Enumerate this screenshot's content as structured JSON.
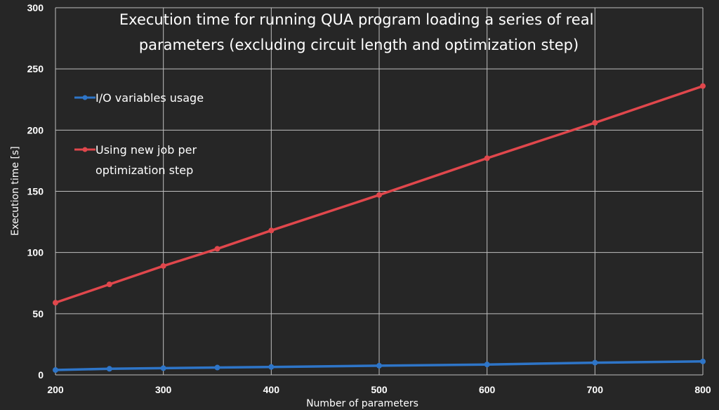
{
  "chart_data": {
    "type": "line",
    "title_lines": [
      "Execution time for running QUA program loading a series of real",
      "parameters (excluding circuit length and optimization step)"
    ],
    "xlabel": "Number of parameters",
    "ylabel": "Execution time [s]",
    "xlim": [
      200,
      800
    ],
    "ylim": [
      0,
      300
    ],
    "x_ticks": [
      200,
      300,
      400,
      500,
      600,
      700,
      800
    ],
    "y_ticks": [
      0,
      50,
      100,
      150,
      200,
      250,
      300
    ],
    "grid": true,
    "legend_position": "top-left",
    "series": [
      {
        "name_lines": [
          "I/O variables usage"
        ],
        "color": "#2e75c8",
        "x": [
          200,
          250,
          300,
          350,
          400,
          500,
          600,
          700,
          800
        ],
        "y": [
          4,
          5,
          5.5,
          6,
          6.5,
          7.5,
          8.5,
          10,
          11
        ]
      },
      {
        "name_lines": [
          "Using new job per",
          "optimization step"
        ],
        "color": "#e0474c",
        "x": [
          200,
          250,
          300,
          350,
          400,
          500,
          600,
          700,
          800
        ],
        "y": [
          59,
          74,
          89,
          103,
          118,
          147,
          177,
          206,
          236
        ]
      }
    ]
  }
}
